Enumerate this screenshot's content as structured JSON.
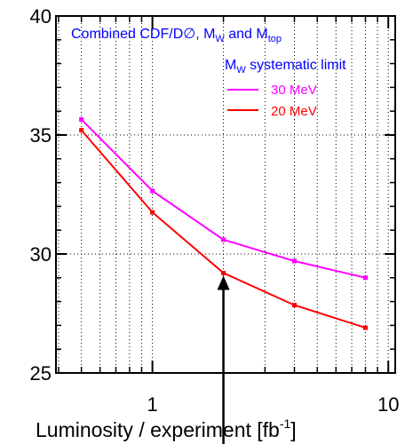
{
  "chart_data": {
    "type": "line",
    "title_parts": [
      "Combined CDF/D",
      "∅",
      ",  M",
      "W",
      " and M",
      "top"
    ],
    "legend_title_parts": [
      "M",
      "W",
      " systematic limit"
    ],
    "xlabel_parts": [
      "Luminosity / experiment   [fb",
      "-1",
      "]"
    ],
    "x_scale": "log",
    "xlim": [
      0.39,
      10.7
    ],
    "ylim": [
      25,
      40
    ],
    "grid": true,
    "legend_position": "top-right",
    "y_ticks": [
      25,
      30,
      35,
      40
    ],
    "y_tick_labels": [
      "25",
      "30",
      "35",
      "40"
    ],
    "x_ticks": [
      1,
      10
    ],
    "x_tick_labels": [
      "1",
      "10"
    ],
    "series": [
      {
        "name": "30 MeV",
        "color": "#ff00ff",
        "x": [
          0.5,
          1.0,
          2.0,
          4.0,
          8.0
        ],
        "y": [
          35.65,
          32.65,
          30.6,
          29.7,
          29.0
        ]
      },
      {
        "name": "20 MeV",
        "color": "#ff0000",
        "x": [
          0.5,
          1.0,
          2.0,
          4.0,
          8.0
        ],
        "y": [
          35.2,
          31.75,
          29.2,
          27.85,
          26.9
        ]
      }
    ],
    "annotation": {
      "type": "arrow",
      "x": 2.0,
      "y_from": 25,
      "y_to": 29.2
    }
  }
}
